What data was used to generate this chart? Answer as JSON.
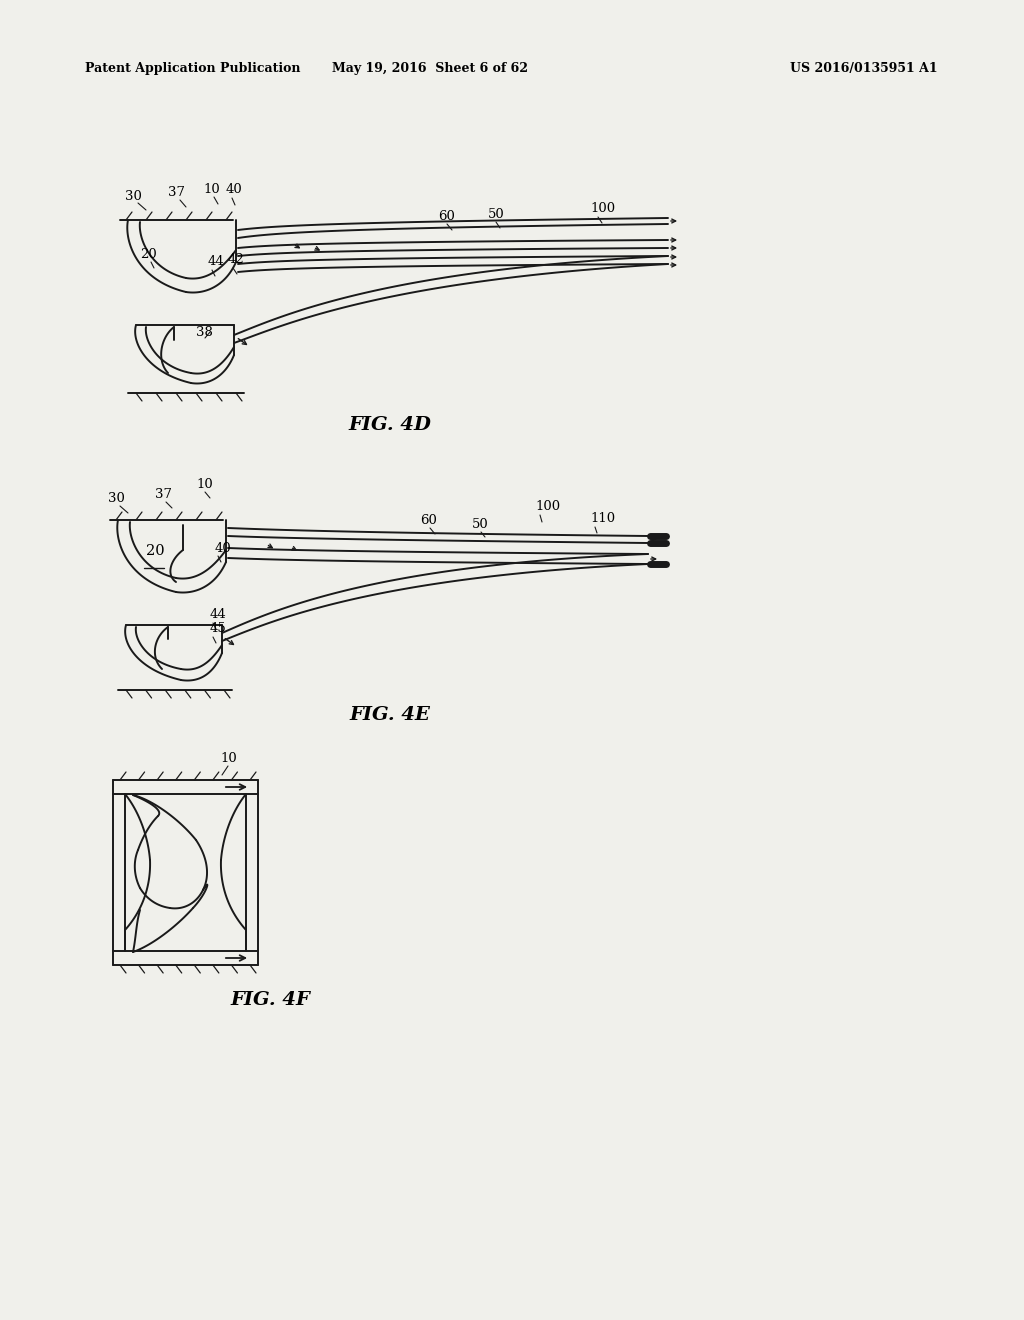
{
  "bg_color": "#f0f0eb",
  "line_color": "#1a1a1a",
  "header_left": "Patent Application Publication",
  "header_mid": "May 19, 2016  Sheet 6 of 62",
  "header_right": "US 2016/0135951 A1",
  "fig4d_label": "FIG. 4D",
  "fig4e_label": "FIG. 4E",
  "fig4f_label": "FIG. 4F"
}
